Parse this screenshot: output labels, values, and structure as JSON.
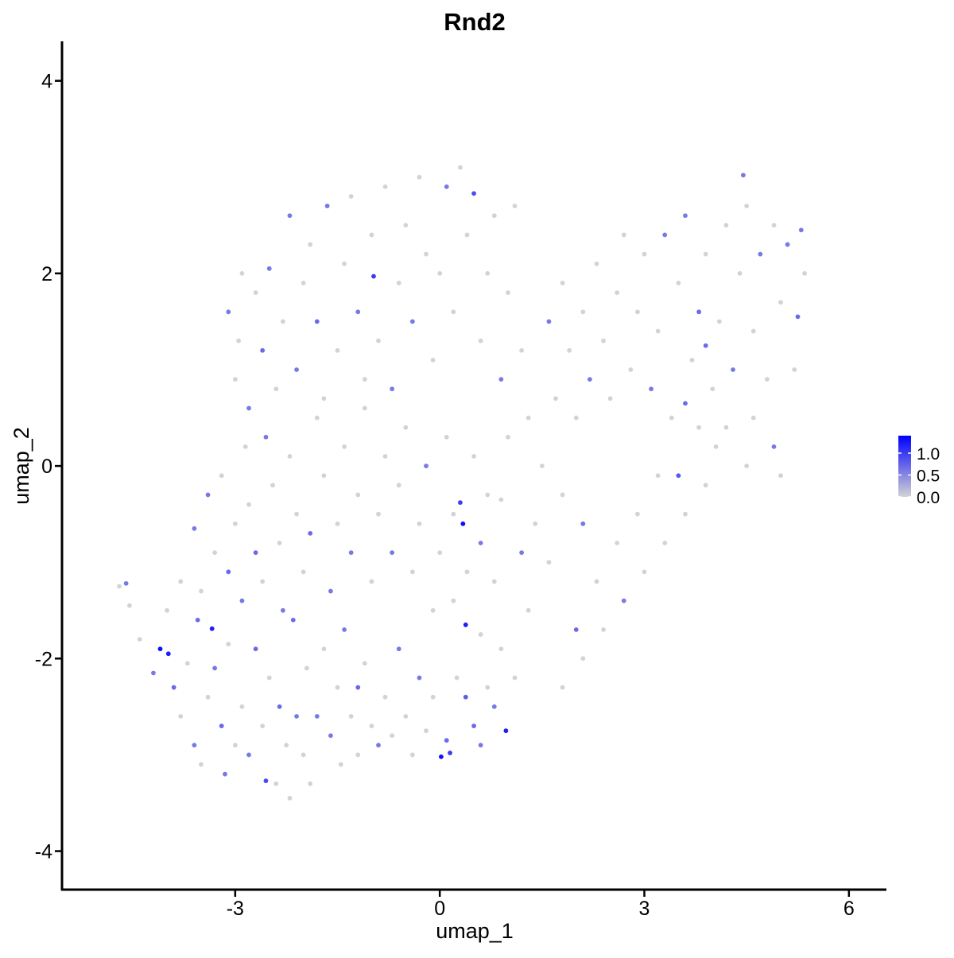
{
  "chart_data": {
    "type": "scatter",
    "title": "Rnd2",
    "x_label": "umap_1",
    "y_label": "umap_2",
    "xlim": [
      -5.54,
      6.55
    ],
    "ylim": [
      -4.4,
      4.41
    ],
    "xticks": [
      -3,
      0,
      3,
      6
    ],
    "yticks": [
      -4,
      -2,
      0,
      2,
      4
    ],
    "color_low": "#d3d3d3",
    "color_high": "#0000ff",
    "clim": [
      0,
      1.4
    ],
    "cticks": [
      {
        "value": 0,
        "label": "0.0"
      },
      {
        "value": 0.5,
        "label": "0.5"
      },
      {
        "value": 1,
        "label": "1.0"
      }
    ],
    "x": [
      -4.7,
      -4.6,
      -4.55,
      -4.4,
      -4.2,
      -4.1,
      -3.98,
      -3.9,
      -3.8,
      -3.7,
      -3.6,
      -3.55,
      -3.5,
      -3.4,
      -3.34,
      -3.3,
      -3.2,
      -3.15,
      -3.1,
      -3.0,
      -2.9,
      -2.8,
      -2.7,
      -2.6,
      -2.55,
      -2.5,
      -2.4,
      -2.35,
      -2.25,
      -2.2,
      -2.15,
      -2.1,
      -2.0,
      -1.95,
      -1.9,
      -1.8,
      -1.7,
      -1.6,
      -1.5,
      -1.45,
      -1.4,
      -1.3,
      -1.2,
      -1.2,
      -1.1,
      -1.0,
      -0.9,
      -0.8,
      -0.7,
      -0.6,
      -0.5,
      -0.4,
      -0.3,
      -0.2,
      -0.1,
      0.02,
      0.1,
      0.15,
      0.25,
      0.38,
      0.5,
      0.6,
      0.7,
      0.8,
      0.97,
      1.1,
      0.9,
      0.6,
      0.38,
      0.2,
      -4.0,
      -3.8,
      -3.6,
      -3.5,
      -3.4,
      -3.3,
      -3.2,
      -3.1,
      -3.0,
      -2.9,
      -2.85,
      -2.8,
      -2.7,
      -2.6,
      -2.55,
      -2.45,
      -2.35,
      -2.3,
      -2.2,
      -2.1,
      -2.0,
      -1.9,
      -1.8,
      -1.7,
      -1.6,
      -1.5,
      -1.4,
      -1.3,
      -1.2,
      -1.1,
      -1.0,
      -0.9,
      -0.8,
      -0.7,
      -0.6,
      -0.5,
      -0.4,
      -0.3,
      -0.2,
      -0.1,
      0.0,
      0.1,
      0.2,
      0.3,
      0.34,
      0.4,
      0.5,
      0.6,
      0.7,
      0.8,
      -3.1,
      -3.0,
      -2.95,
      -2.9,
      -2.8,
      -2.7,
      -2.6,
      -2.5,
      -2.4,
      -2.3,
      -2.2,
      -2.1,
      -2.0,
      -1.9,
      -1.8,
      -1.7,
      -1.65,
      -1.5,
      -1.4,
      -1.3,
      -1.2,
      -1.1,
      -1.0,
      -0.97,
      -0.9,
      -0.8,
      -0.7,
      -0.6,
      -0.5,
      -0.4,
      -0.3,
      -0.2,
      -0.1,
      0.0,
      0.1,
      0.2,
      0.3,
      0.4,
      0.5,
      0.6,
      0.7,
      0.8,
      0.9,
      1.0,
      1.1,
      1.2,
      1.3,
      1.0,
      1.5,
      1.4,
      1.6,
      1.7,
      1.8,
      1.9,
      2.0,
      2.1,
      2.2,
      2.3,
      2.4,
      2.5,
      2.6,
      2.7,
      2.8,
      2.9,
      3.0,
      3.1,
      3.2,
      3.3,
      3.4,
      3.5,
      3.6,
      3.7,
      3.8,
      3.9,
      4.0,
      4.1,
      4.2,
      4.3,
      4.4,
      4.45,
      4.5,
      4.6,
      4.7,
      4.8,
      4.9,
      5.0,
      5.1,
      5.2,
      5.3,
      5.35,
      4.9,
      4.5,
      4.2,
      3.9,
      3.6,
      3.3,
      3.0,
      2.7,
      2.4,
      2.1,
      1.8,
      2.0,
      2.3,
      2.6,
      2.9,
      3.2,
      3.5,
      3.8,
      2.1,
      1.8,
      3.6,
      4.05,
      4.6,
      5.25,
      5.0,
      3.9,
      1.3,
      1.6,
      1.2,
      0.9
    ],
    "y": [
      -1.25,
      -1.22,
      -1.45,
      -1.8,
      -2.15,
      -1.9,
      -1.95,
      -2.3,
      -2.6,
      -2.05,
      -2.9,
      -1.6,
      -3.1,
      -2.4,
      -1.69,
      -2.1,
      -2.7,
      -3.2,
      -1.85,
      -2.9,
      -2.5,
      -3.0,
      -1.9,
      -2.7,
      -3.27,
      -2.2,
      -3.3,
      -2.5,
      -2.9,
      -3.45,
      -1.6,
      -2.6,
      -3.0,
      -2.1,
      -3.3,
      -2.6,
      -1.9,
      -2.8,
      -2.3,
      -3.1,
      -1.7,
      -2.6,
      -3.0,
      -2.3,
      -2.05,
      -2.7,
      -2.9,
      -2.4,
      -2.8,
      -1.9,
      -2.6,
      -3.0,
      -2.2,
      -2.75,
      -2.4,
      -3.02,
      -2.85,
      -2.98,
      -2.2,
      -2.4,
      -2.7,
      -2.9,
      -2.3,
      -2.5,
      -2.75,
      -2.2,
      -1.9,
      -1.75,
      -1.65,
      -1.4,
      -1.5,
      -1.2,
      -0.65,
      -1.3,
      -0.3,
      -0.9,
      -0.1,
      -1.1,
      -0.6,
      -1.4,
      0.2,
      -0.4,
      -0.9,
      -1.2,
      0.3,
      -0.2,
      -0.8,
      -1.5,
      0.1,
      -0.5,
      -1.1,
      -0.7,
      0.5,
      -0.1,
      -1.3,
      -0.6,
      0.2,
      -0.9,
      -0.3,
      0.6,
      -1.2,
      -0.5,
      0.1,
      -0.9,
      -0.2,
      0.4,
      -1.1,
      -0.6,
      0.0,
      -1.5,
      -0.9,
      0.3,
      -0.5,
      -0.38,
      -0.6,
      -1.1,
      0.1,
      -0.8,
      -0.3,
      -1.2,
      1.6,
      0.9,
      1.3,
      2.0,
      0.6,
      1.8,
      1.2,
      2.05,
      0.8,
      1.5,
      2.6,
      1.0,
      1.9,
      2.3,
      1.5,
      0.7,
      2.7,
      1.2,
      2.1,
      2.8,
      1.6,
      0.9,
      2.4,
      1.97,
      1.3,
      2.9,
      0.8,
      1.9,
      2.5,
      1.5,
      3.0,
      2.2,
      1.1,
      2.0,
      2.9,
      1.6,
      3.1,
      2.4,
      2.83,
      1.3,
      2.0,
      2.6,
      0.9,
      1.8,
      2.7,
      1.2,
      0.5,
      0.3,
      0.0,
      -0.6,
      1.5,
      0.7,
      1.9,
      1.2,
      0.5,
      1.6,
      0.9,
      2.1,
      1.3,
      0.7,
      1.8,
      2.4,
      1.0,
      1.6,
      2.2,
      0.8,
      1.4,
      2.4,
      0.5,
      1.9,
      2.6,
      1.1,
      1.6,
      2.2,
      0.8,
      1.5,
      2.5,
      1.0,
      2.0,
      3.02,
      2.7,
      1.4,
      2.2,
      0.9,
      2.5,
      1.7,
      2.3,
      1.0,
      2.45,
      2.0,
      0.2,
      0.0,
      0.4,
      -0.2,
      -0.5,
      -0.8,
      -1.1,
      -1.4,
      -1.7,
      -2.0,
      -2.3,
      -1.7,
      -1.2,
      -0.8,
      -0.5,
      -0.1,
      -0.1,
      0.4,
      -0.6,
      -0.3,
      0.65,
      0.2,
      0.5,
      1.55,
      -0.1,
      1.25,
      -1.5,
      -1.0,
      -0.9,
      -0.35
    ],
    "expression": [
      0,
      0.6,
      0,
      0,
      0.6,
      1.3,
      1.2,
      0.7,
      0,
      0,
      0.6,
      0.7,
      0,
      0,
      1.2,
      0.6,
      0.7,
      0.6,
      0,
      0,
      0,
      0.6,
      0.7,
      0,
      0.9,
      0,
      0,
      0.7,
      0,
      0,
      0.7,
      0.6,
      0,
      0,
      0,
      0.6,
      0,
      0.6,
      0,
      0,
      0.6,
      0,
      0,
      0.7,
      0,
      0,
      0.6,
      0,
      0,
      0.6,
      0,
      0,
      0.6,
      0,
      0,
      1.3,
      0.7,
      1.0,
      0,
      0.8,
      0.7,
      0.6,
      0,
      0.6,
      1.2,
      0,
      0,
      0,
      1.2,
      0,
      0,
      0,
      0.6,
      0,
      0.6,
      0,
      0,
      0.7,
      0,
      0.6,
      0,
      0,
      0.7,
      0,
      0.6,
      0,
      0,
      0.6,
      0,
      0,
      0,
      0.7,
      0,
      0,
      0.6,
      0,
      0,
      0.6,
      0,
      0,
      0,
      0,
      0,
      0.6,
      0,
      0,
      0,
      0,
      0.6,
      0,
      0,
      0,
      0,
      1.0,
      1.3,
      0,
      0,
      0.6,
      0,
      0,
      0.6,
      0,
      0,
      0,
      0.6,
      0,
      0.7,
      0.6,
      0,
      0,
      0.6,
      0.6,
      0,
      0,
      0.7,
      0,
      0.6,
      0,
      0,
      0,
      0.6,
      0,
      0,
      1.0,
      0,
      0,
      0.6,
      0,
      0,
      0.6,
      0,
      0,
      0,
      0,
      0.6,
      0,
      0,
      0,
      0.9,
      0,
      0,
      0,
      0.6,
      0,
      0,
      0,
      0,
      0,
      0,
      0,
      0.6,
      0,
      0,
      0,
      0,
      0,
      0.6,
      0,
      0,
      0,
      0,
      0,
      0,
      0,
      0,
      0.6,
      0,
      0.6,
      0,
      0,
      0.6,
      0,
      0.7,
      0,
      0,
      0,
      0,
      0.6,
      0,
      0.6,
      0,
      0,
      0.6,
      0,
      0,
      0,
      0.6,
      0,
      0.6,
      0,
      0.6,
      0,
      0,
      0,
      0,
      0,
      0,
      0.6,
      0,
      0,
      0,
      0.7,
      0,
      0,
      0,
      0,
      0.8,
      0,
      0.6,
      0,
      0.7,
      0,
      0,
      0.7,
      0,
      0.7,
      0,
      0,
      0.6,
      0
    ]
  }
}
